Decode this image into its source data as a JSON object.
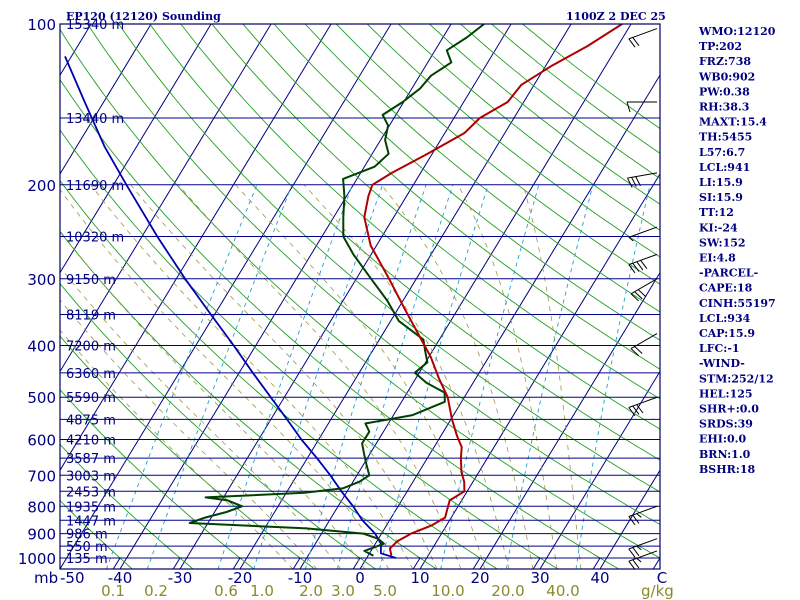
{
  "chart_data": {
    "type": "line",
    "title": "EP120 (12120) Sounding",
    "time_label": "1100Z  2 DEC 25",
    "pressure_axis": {
      "unit_label": "mb",
      "range": [
        1000,
        100
      ],
      "ticks": [
        100,
        200,
        300,
        400,
        500,
        600,
        700,
        800,
        900,
        1000
      ]
    },
    "temperature_axis": {
      "range": [
        -50,
        50
      ],
      "ticks": [
        -50,
        -40,
        -30,
        -20,
        -10,
        0,
        10,
        20,
        30,
        40,
        50
      ],
      "tick_labels": [
        "-50",
        "-40",
        "-30",
        "-20",
        "-10",
        "0",
        "10",
        "20",
        "30",
        "40",
        "C"
      ]
    },
    "mixing_ratio": {
      "unit_label": "g/kg",
      "values": [
        "0.1",
        "0.2",
        "0.6",
        "1.0",
        "2.0",
        "3.0",
        "5.0",
        "10.0",
        "20.0",
        "40.0"
      ]
    },
    "height_levels": [
      {
        "p": 100,
        "label": "15340 m"
      },
      {
        "p": 150,
        "label": "13440 m"
      },
      {
        "p": 200,
        "label": "11690 m"
      },
      {
        "p": 250,
        "label": "10320 m"
      },
      {
        "p": 300,
        "label": "9150 m"
      },
      {
        "p": 350,
        "label": "8119 m"
      },
      {
        "p": 400,
        "label": "7200 m"
      },
      {
        "p": 450,
        "label": "6360 m"
      },
      {
        "p": 500,
        "label": "5590 m"
      },
      {
        "p": 550,
        "label": "4875 m"
      },
      {
        "p": 600,
        "label": "4210 m"
      },
      {
        "p": 650,
        "label": "3587 m"
      },
      {
        "p": 700,
        "label": "3003 m"
      },
      {
        "p": 750,
        "label": "2453 m"
      },
      {
        "p": 800,
        "label": "1935 m"
      },
      {
        "p": 850,
        "label": "1447 m"
      },
      {
        "p": 900,
        "label": "986 m"
      },
      {
        "p": 950,
        "label": "550 m"
      },
      {
        "p": 1000,
        "label": "135 m"
      }
    ],
    "series": [
      {
        "name": "Temperature",
        "color": "#b00000",
        "points": [
          {
            "p": 990,
            "t": 5.0
          },
          {
            "p": 960,
            "t": 4.0
          },
          {
            "p": 930,
            "t": 4.5
          },
          {
            "p": 900,
            "t": 6.0
          },
          {
            "p": 870,
            "t": 8.5
          },
          {
            "p": 840,
            "t": 10.0
          },
          {
            "p": 810,
            "t": 9.5
          },
          {
            "p": 780,
            "t": 9.0
          },
          {
            "p": 750,
            "t": 10.5
          },
          {
            "p": 720,
            "t": 9.5
          },
          {
            "p": 690,
            "t": 8.0
          },
          {
            "p": 650,
            "t": 6.5
          },
          {
            "p": 620,
            "t": 5.5
          },
          {
            "p": 590,
            "t": 3.5
          },
          {
            "p": 550,
            "t": 1.0
          },
          {
            "p": 500,
            "t": -2.0
          },
          {
            "p": 460,
            "t": -5.5
          },
          {
            "p": 420,
            "t": -9.0
          },
          {
            "p": 380,
            "t": -13.5
          },
          {
            "p": 340,
            "t": -18.5
          },
          {
            "p": 300,
            "t": -24.0
          },
          {
            "p": 260,
            "t": -30.5
          },
          {
            "p": 230,
            "t": -34.5
          },
          {
            "p": 210,
            "t": -36.0
          },
          {
            "p": 200,
            "t": -36.5
          },
          {
            "p": 190,
            "t": -34.5
          },
          {
            "p": 175,
            "t": -30.5
          },
          {
            "p": 160,
            "t": -26.5
          },
          {
            "p": 150,
            "t": -25.5
          },
          {
            "p": 140,
            "t": -22.5
          },
          {
            "p": 130,
            "t": -22.0
          },
          {
            "p": 120,
            "t": -19.0
          },
          {
            "p": 110,
            "t": -15.0
          },
          {
            "p": 100,
            "t": -11.5
          }
        ]
      },
      {
        "name": "Dewpoint",
        "color": "#004000",
        "points": [
          {
            "p": 990,
            "t": 2.0
          },
          {
            "p": 970,
            "t": 0.0
          },
          {
            "p": 940,
            "t": 2.5
          },
          {
            "p": 920,
            "t": 1.0
          },
          {
            "p": 900,
            "t": -2.0
          },
          {
            "p": 880,
            "t": -12.0
          },
          {
            "p": 860,
            "t": -32.0
          },
          {
            "p": 840,
            "t": -30.0
          },
          {
            "p": 820,
            "t": -27.0
          },
          {
            "p": 800,
            "t": -25.0
          },
          {
            "p": 780,
            "t": -28.0
          },
          {
            "p": 770,
            "t": -32.0
          },
          {
            "p": 755,
            "t": -16.0
          },
          {
            "p": 740,
            "t": -10.0
          },
          {
            "p": 720,
            "t": -8.0
          },
          {
            "p": 700,
            "t": -7.0
          },
          {
            "p": 670,
            "t": -8.5
          },
          {
            "p": 640,
            "t": -10.0
          },
          {
            "p": 610,
            "t": -11.5
          },
          {
            "p": 580,
            "t": -11.5
          },
          {
            "p": 560,
            "t": -13.0
          },
          {
            "p": 540,
            "t": -6.0
          },
          {
            "p": 510,
            "t": -2.0
          },
          {
            "p": 490,
            "t": -3.0
          },
          {
            "p": 470,
            "t": -7.0
          },
          {
            "p": 450,
            "t": -10.0
          },
          {
            "p": 430,
            "t": -9.0
          },
          {
            "p": 410,
            "t": -10.5
          },
          {
            "p": 390,
            "t": -12.0
          },
          {
            "p": 360,
            "t": -18.0
          },
          {
            "p": 330,
            "t": -22.0
          },
          {
            "p": 300,
            "t": -27.0
          },
          {
            "p": 270,
            "t": -32.5
          },
          {
            "p": 250,
            "t": -36.0
          },
          {
            "p": 230,
            "t": -38.0
          },
          {
            "p": 210,
            "t": -40.0
          },
          {
            "p": 195,
            "t": -42.0
          },
          {
            "p": 185,
            "t": -38.0
          },
          {
            "p": 175,
            "t": -37.0
          },
          {
            "p": 165,
            "t": -39.0
          },
          {
            "p": 155,
            "t": -40.0
          },
          {
            "p": 148,
            "t": -42.0
          },
          {
            "p": 140,
            "t": -40.0
          },
          {
            "p": 132,
            "t": -38.5
          },
          {
            "p": 125,
            "t": -38.0
          },
          {
            "p": 118,
            "t": -36.0
          },
          {
            "p": 112,
            "t": -38.0
          },
          {
            "p": 106,
            "t": -36.0
          },
          {
            "p": 100,
            "t": -34.5
          }
        ]
      },
      {
        "name": "Parcel",
        "color": "#0000b0",
        "points": [
          {
            "p": 1000,
            "t": 6.0
          },
          {
            "p": 980,
            "t": 3.0
          },
          {
            "p": 940,
            "t": 2.0
          },
          {
            "p": 900,
            "t": 0.0
          },
          {
            "p": 850,
            "t": -3.5
          },
          {
            "p": 800,
            "t": -6.5
          },
          {
            "p": 750,
            "t": -10.0
          },
          {
            "p": 700,
            "t": -13.5
          },
          {
            "p": 650,
            "t": -17.5
          },
          {
            "p": 600,
            "t": -22.0
          },
          {
            "p": 550,
            "t": -26.5
          },
          {
            "p": 500,
            "t": -31.5
          },
          {
            "p": 450,
            "t": -37.0
          },
          {
            "p": 400,
            "t": -43.0
          },
          {
            "p": 350,
            "t": -50.0
          },
          {
            "p": 300,
            "t": -58.0
          },
          {
            "p": 250,
            "t": -67.0
          },
          {
            "p": 200,
            "t": -77.5
          },
          {
            "p": 170,
            "t": -85.0
          },
          {
            "p": 140,
            "t": -93.0
          },
          {
            "p": 115,
            "t": -101.0
          }
        ]
      }
    ],
    "wind_barbs": [
      {
        "p": 102,
        "dir": 250,
        "spd": 20
      },
      {
        "p": 140,
        "dir": 270,
        "spd": 10
      },
      {
        "p": 190,
        "dir": 260,
        "spd": 30
      },
      {
        "p": 240,
        "dir": 250,
        "spd": 5
      },
      {
        "p": 270,
        "dir": 250,
        "spd": 40
      },
      {
        "p": 300,
        "dir": 240,
        "spd": 30
      },
      {
        "p": 380,
        "dir": 240,
        "spd": 20
      },
      {
        "p": 500,
        "dir": 250,
        "spd": 30
      },
      {
        "p": 800,
        "dir": 250,
        "spd": 25
      },
      {
        "p": 920,
        "dir": 250,
        "spd": 25
      },
      {
        "p": 970,
        "dir": 250,
        "spd": 25
      }
    ]
  },
  "indices": [
    "WMO:12120",
    "TP:202",
    "FRZ:738",
    "WB0:902",
    "PW:0.38",
    "RH:38.3",
    "MAXT:15.4",
    "TH:5455",
    "L57:6.7",
    "LCL:941",
    "LI:15.9",
    "SI:15.9",
    "TT:12",
    "KI:-24",
    "SW:152",
    "EI:4.8",
    "-PARCEL-",
    "CAPE:18",
    "CINH:55197",
    "LCL:934",
    "CAP:15.9",
    "LFC:-1",
    "-WIND-",
    "STM:252/12",
    "HEL:125",
    "SHR+:0.0",
    "SRDS:39",
    "EHI:0.0",
    "BRN:1.0",
    "BSHR:18"
  ],
  "colors": {
    "frame": "#000060",
    "isobar": "#00008b",
    "isotherm": "#000080",
    "dry_adiabat": "#22a022",
    "moist_adiabat": "#9a9a40",
    "mixing_ratio": "#20a0d0",
    "temperature": "#b00000",
    "dewpoint": "#004000",
    "parcel": "#0000b0"
  }
}
